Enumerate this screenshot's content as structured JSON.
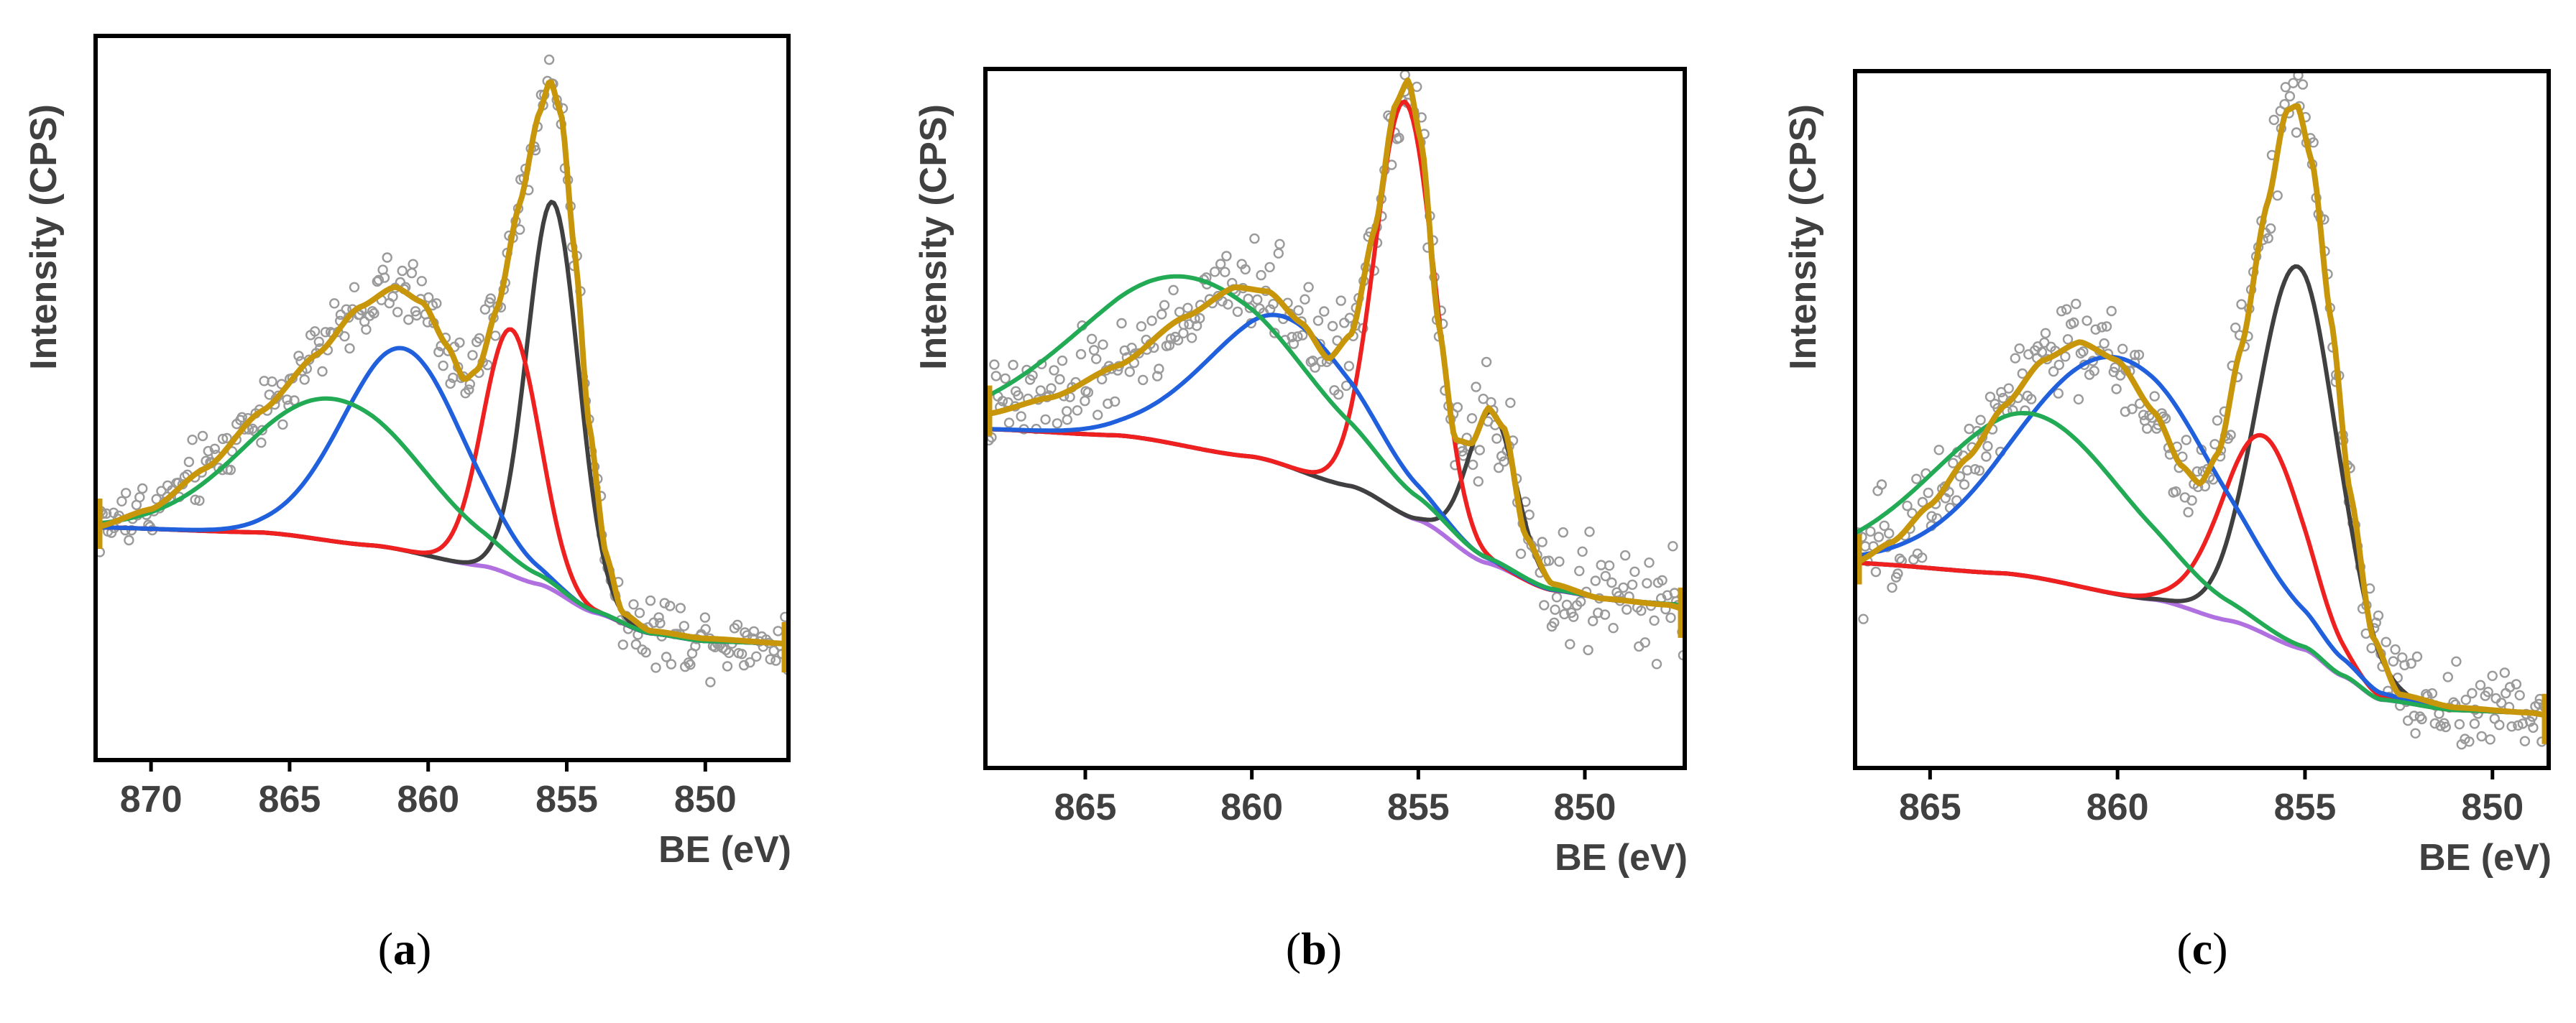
{
  "chart_data": [
    {
      "type": "line",
      "panel": "a",
      "caption_letter": "a",
      "xlabel": "BE (eV)",
      "ylabel": "Intensity (CPS)",
      "xlim": [
        872,
        847
      ],
      "ylim": [
        -0.45,
        2.35
      ],
      "x_ticks": [
        870,
        865,
        860,
        855,
        850
      ],
      "x_tick_labels": [
        "870",
        "865",
        "860",
        "855",
        "850"
      ],
      "background": {
        "name": "background",
        "color": "#b070e0",
        "x": [
          872,
          866,
          862,
          858,
          856,
          854,
          852,
          850,
          847
        ],
        "y": [
          0.45,
          0.43,
          0.38,
          0.3,
          0.23,
          0.12,
          0.04,
          0.01,
          0.0
        ]
      },
      "components": [
        {
          "name": "component-gray",
          "color": "#404040",
          "center": 855.5,
          "height": 1.5,
          "fwhm": 2.2
        },
        {
          "name": "component-red",
          "color": "#ee2020",
          "center": 857.0,
          "height": 0.95,
          "fwhm": 2.4
        },
        {
          "name": "component-blue",
          "color": "#2060dd",
          "center": 860.9,
          "height": 0.78,
          "fwhm": 5.2
        },
        {
          "name": "component-green",
          "color": "#22aa55",
          "center": 863.4,
          "height": 0.55,
          "fwhm": 7.5
        }
      ],
      "envelope": {
        "name": "envelope",
        "color": "#c8960a",
        "x": [
          872,
          870,
          868,
          866,
          864,
          862.5,
          861.2,
          860.2,
          859.3,
          858.7,
          858.2,
          857.5,
          856.7,
          856.0,
          855.6,
          855.2,
          854.7,
          854.2,
          853.6,
          853.0,
          852.0,
          850.0,
          847.0
        ],
        "y": [
          0.45,
          0.52,
          0.68,
          0.9,
          1.12,
          1.3,
          1.38,
          1.32,
          1.15,
          1.02,
          1.06,
          1.3,
          1.7,
          2.05,
          2.18,
          2.05,
          1.5,
          0.85,
          0.35,
          0.12,
          0.05,
          0.02,
          0.0
        ]
      },
      "scatter_noise": 0.07
    },
    {
      "type": "line",
      "panel": "b",
      "caption_letter": "b",
      "xlabel": "BE (eV)",
      "ylabel": "Intensity (CPS)",
      "xlim": [
        868,
        847
      ],
      "ylim": [
        -0.75,
        2.55
      ],
      "x_ticks": [
        865,
        860,
        855,
        850
      ],
      "x_tick_labels": [
        "865",
        "860",
        "855",
        "850"
      ],
      "background": {
        "name": "background",
        "color": "#b070e0",
        "x": [
          868,
          864,
          860,
          857,
          855,
          853,
          851,
          849,
          847
        ],
        "y": [
          0.85,
          0.82,
          0.72,
          0.58,
          0.42,
          0.22,
          0.09,
          0.04,
          0.02
        ]
      },
      "components": [
        {
          "name": "component-gray",
          "color": "#404040",
          "center": 852.8,
          "height": 0.72,
          "fwhm": 1.7
        },
        {
          "name": "component-red",
          "color": "#ee2020",
          "center": 855.4,
          "height": 1.95,
          "fwhm": 2.1
        },
        {
          "name": "component-blue",
          "color": "#2060dd",
          "center": 859.0,
          "height": 0.7,
          "fwhm": 5.5
        },
        {
          "name": "component-green",
          "color": "#22aa55",
          "center": 861.8,
          "height": 0.8,
          "fwhm": 8.0
        }
      ],
      "envelope": {
        "name": "envelope",
        "color": "#c8960a",
        "x": [
          868,
          866,
          864,
          862,
          860.5,
          859.5,
          858.5,
          857.7,
          857.0,
          856.3,
          855.7,
          855.3,
          854.9,
          854.4,
          853.9,
          853.4,
          852.9,
          852.4,
          851.8,
          851.0,
          849.5,
          847.5,
          847.0
        ],
        "y": [
          0.92,
          1.0,
          1.15,
          1.38,
          1.52,
          1.5,
          1.35,
          1.18,
          1.3,
          1.8,
          2.38,
          2.5,
          2.2,
          1.35,
          0.8,
          0.78,
          0.95,
          0.85,
          0.35,
          0.12,
          0.05,
          0.02,
          0.0
        ]
      },
      "scatter_noise": 0.12
    },
    {
      "type": "line",
      "panel": "c",
      "caption_letter": "c",
      "xlabel": "BE (eV)",
      "ylabel": "Intensity (CPS)",
      "xlim": [
        867,
        848.5
      ],
      "ylim": [
        -0.2,
        2.45
      ],
      "x_ticks": [
        865,
        860,
        855,
        850
      ],
      "x_tick_labels": [
        "865",
        "860",
        "855",
        "850"
      ],
      "background": {
        "name": "background",
        "color": "#b070e0",
        "x": [
          867,
          863,
          859,
          857,
          855,
          854,
          853,
          851,
          849,
          848.5
        ],
        "y": [
          0.58,
          0.54,
          0.44,
          0.36,
          0.25,
          0.15,
          0.06,
          0.02,
          0.01,
          0.0
        ]
      },
      "components": [
        {
          "name": "component-gray",
          "color": "#404040",
          "center": 855.2,
          "height": 1.45,
          "fwhm": 2.5
        },
        {
          "name": "component-red",
          "color": "#ee2020",
          "center": 856.1,
          "height": 0.75,
          "fwhm": 2.6
        },
        {
          "name": "component-blue",
          "color": "#2060dd",
          "center": 860.0,
          "height": 0.9,
          "fwhm": 6.2
        },
        {
          "name": "component-green",
          "color": "#22aa55",
          "center": 862.3,
          "height": 0.62,
          "fwhm": 6.0
        }
      ],
      "envelope": {
        "name": "envelope",
        "color": "#c8960a",
        "x": [
          867,
          866,
          865,
          864,
          863,
          862,
          861,
          860,
          859,
          858.3,
          857.8,
          857.3,
          856.7,
          856.0,
          855.5,
          855.2,
          854.8,
          854.3,
          853.8,
          853.2,
          852.5,
          851.0,
          849.0,
          848.5
        ],
        "y": [
          0.58,
          0.66,
          0.8,
          0.98,
          1.18,
          1.35,
          1.42,
          1.35,
          1.15,
          0.95,
          0.88,
          1.0,
          1.4,
          1.95,
          2.3,
          2.32,
          2.1,
          1.5,
          0.85,
          0.3,
          0.08,
          0.03,
          0.01,
          0.0
        ]
      },
      "scatter_noise": 0.1
    }
  ]
}
